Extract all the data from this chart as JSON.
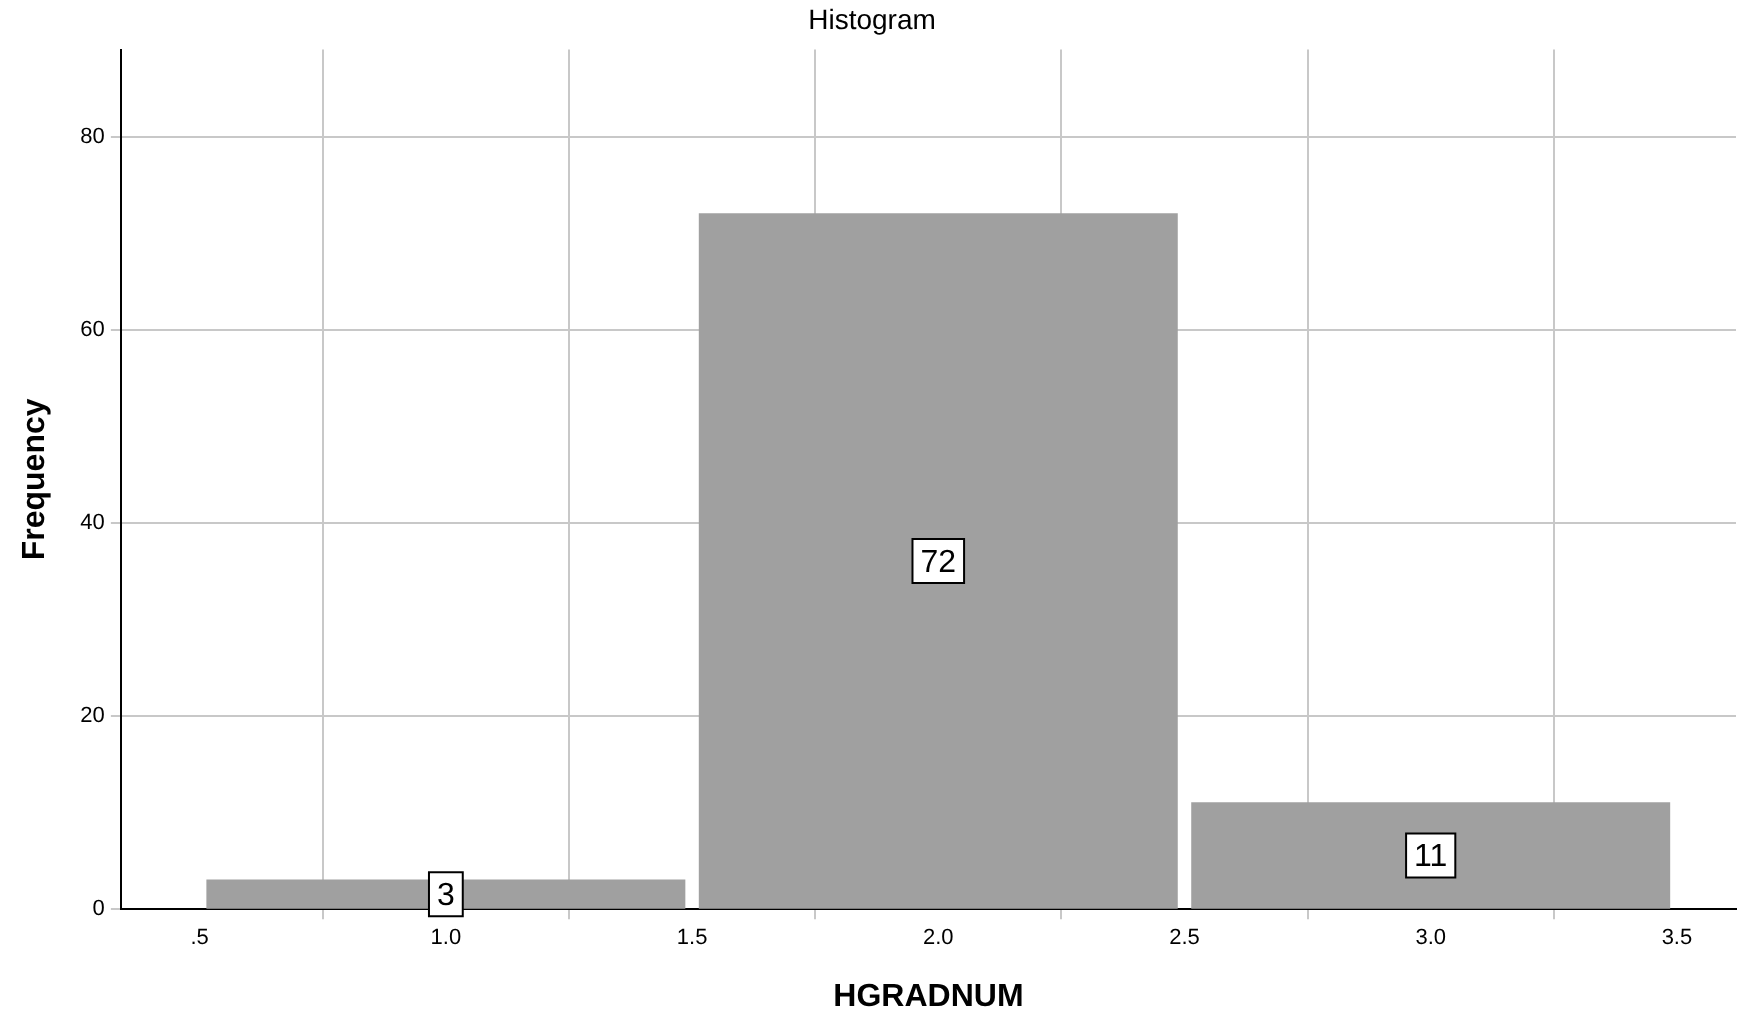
{
  "chart_data": {
    "type": "histogram",
    "title": "Histogram",
    "xlabel": "HGRADNUM",
    "ylabel": "Frequency",
    "bins": [
      0.5,
      1.5,
      2.5,
      3.5
    ],
    "values": [
      3,
      72,
      11
    ],
    "color": "#a0a0a0",
    "xlim": [
      0.34,
      3.62
    ],
    "xticks": [
      {
        "value": 0.5,
        "label": ".5"
      },
      {
        "value": 1,
        "label": "1.0"
      },
      {
        "value": 1.5,
        "label": "1.5"
      },
      {
        "value": 2,
        "label": "2.0"
      },
      {
        "value": 2.5,
        "label": "2.5"
      },
      {
        "value": 3,
        "label": "3.0"
      },
      {
        "value": 3.5,
        "label": "3.5"
      }
    ],
    "ylim": [
      0,
      89
    ],
    "yticks": [
      0,
      20,
      40,
      60,
      80
    ],
    "grid": true,
    "data_labels": true
  }
}
